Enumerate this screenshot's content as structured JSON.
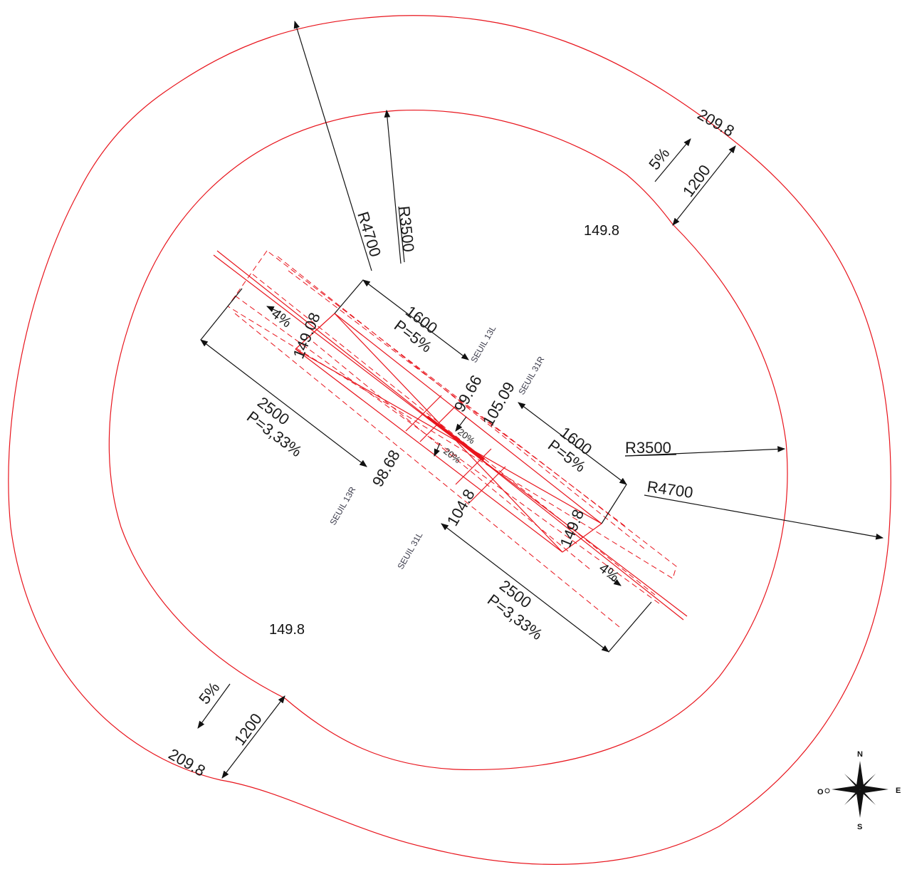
{
  "labels": {
    "r4700_top": "R4700",
    "r3500_top": "R3500",
    "r3500_right": "R3500",
    "r4700_right": "R4700",
    "elev_inner_top": "149.8",
    "elev_inner_bottom": "149.8",
    "elev_outer_top": "209.8",
    "elev_outer_bottom": "209.8",
    "width_top": "1200",
    "width_bottom": "1200",
    "slope_top": "5%",
    "slope_bottom": "5%",
    "len_1600_top": "1600",
    "slope_1600_top": "P=5%",
    "len_1600_right": "1600",
    "slope_1600_right": "P=5%",
    "len_2500_left": "2500",
    "slope_2500_left": "P=3,33%",
    "len_2500_bottom": "2500",
    "slope_2500_bottom": "P=3,33%",
    "pct4_left": "4%",
    "pct4_right": "4%",
    "pct20_upper": "20%",
    "pct20_lower": "20%",
    "elev_149_08": "149.08",
    "elev_149_8_strip": "149.8",
    "elev_99_66": "99.66",
    "elev_105_09": "105.09",
    "elev_98_68": "98.68",
    "elev_104_8": "104.8",
    "seuil_13l": "SEUIL 13L",
    "seuil_31r": "SEUIL 31R",
    "seuil_13r": "SEUIL 13R",
    "seuil_31l": "SEUIL 31L"
  },
  "compass": {
    "n": "N",
    "s": "S",
    "e": "E",
    "o": "O"
  },
  "colors": {
    "drawing_red": "#e8141c",
    "dimension": "#111111"
  }
}
